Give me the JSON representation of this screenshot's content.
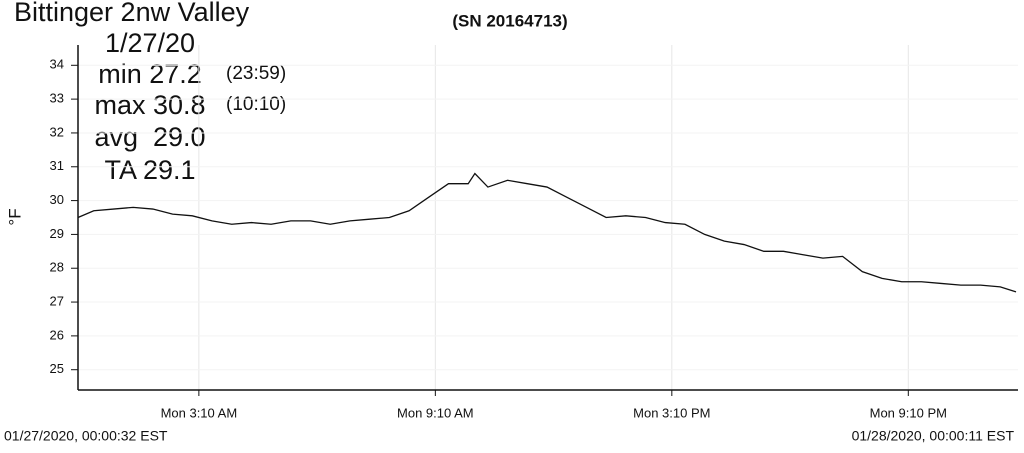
{
  "chart_data": {
    "type": "line",
    "title": "Bittinger 2nw Valley",
    "subtitle": "(SN 20164713)",
    "date": "1/27/20",
    "stats": [
      {
        "label": "min 27.2",
        "time": "(23:59)"
      },
      {
        "label": "max 30.8",
        "time": "(10:10)"
      },
      {
        "label": "avg  29.0"
      },
      {
        "label": "TA 29.1"
      }
    ],
    "start_label": "01/27/2020, 00:00:32 EST",
    "end_label": "01/28/2020, 00:00:11 EST",
    "ylabel": "°F",
    "x": [
      0.1,
      0.5,
      1,
      1.5,
      2,
      2.5,
      3,
      3.5,
      4,
      4.5,
      5,
      5.5,
      6,
      6.5,
      7,
      7.5,
      8,
      8.5,
      9,
      9.5,
      10,
      10.17,
      10.5,
      11,
      11.5,
      12,
      12.5,
      13,
      13.5,
      14,
      14.5,
      15,
      15.5,
      16,
      16.5,
      17,
      17.5,
      18,
      18.5,
      19,
      19.5,
      20,
      20.5,
      21,
      21.5,
      22,
      22.5,
      23,
      23.5,
      23.9
    ],
    "series": [
      {
        "name": "°F",
        "color": "#111111",
        "values": [
          29.5,
          29.7,
          29.75,
          29.8,
          29.75,
          29.6,
          29.55,
          29.4,
          29.3,
          29.35,
          29.3,
          29.4,
          29.4,
          29.3,
          29.4,
          29.45,
          29.5,
          29.7,
          30.1,
          30.5,
          30.5,
          30.8,
          30.4,
          30.6,
          30.5,
          30.4,
          30.1,
          29.8,
          29.5,
          29.55,
          29.5,
          29.35,
          29.3,
          29.0,
          28.8,
          28.7,
          28.5,
          28.5,
          28.4,
          28.3,
          28.35,
          27.9,
          27.7,
          27.6,
          27.6,
          27.55,
          27.5,
          27.5,
          27.45,
          27.3
        ]
      }
    ],
    "xlim": [
      0.1,
      23.95
    ],
    "ylim": [
      24.4,
      34.6
    ],
    "xticks": [
      {
        "value": 3.1667,
        "label": "Mon 3:10 AM"
      },
      {
        "value": 9.1667,
        "label": "Mon 9:10 AM"
      },
      {
        "value": 15.1667,
        "label": "Mon 3:10 PM"
      },
      {
        "value": 21.1667,
        "label": "Mon 9:10 PM"
      }
    ],
    "yticks": [
      25,
      26,
      27,
      28,
      29,
      30,
      31,
      32,
      33,
      34
    ],
    "grid": true
  }
}
